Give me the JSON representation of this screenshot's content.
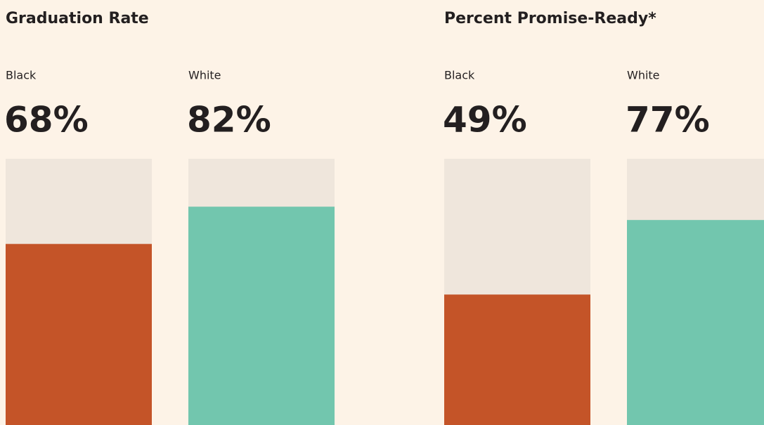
{
  "chart_data": [
    {
      "type": "bar",
      "title": "Graduation Rate",
      "categories": [
        "Black",
        "White"
      ],
      "values": [
        68,
        82
      ],
      "value_labels": [
        "68%",
        "82%"
      ],
      "colors": [
        "#c45428",
        "#72c6ae"
      ],
      "track_color": "#efe6dc",
      "ylim": [
        0,
        100
      ]
    },
    {
      "type": "bar",
      "title": "Percent Promise-Ready*",
      "categories": [
        "Black",
        "White"
      ],
      "values": [
        49,
        77
      ],
      "value_labels": [
        "49%",
        "77%"
      ],
      "colors": [
        "#c45428",
        "#72c6ae"
      ],
      "track_color": "#efe6dc",
      "ylim": [
        0,
        100
      ]
    }
  ]
}
